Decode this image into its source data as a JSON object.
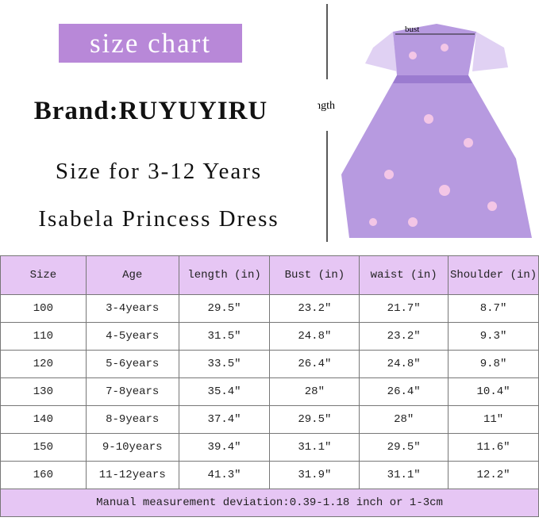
{
  "badge": "size chart",
  "brand": "Brand:RUYUYIRU",
  "subtitle": "Size for 3-12 Years",
  "product": "Isabela Princess Dress",
  "dress_labels": {
    "bust": "bust",
    "length": "length"
  },
  "colors": {
    "accent": "#b888d8",
    "header": "#e6c6f4"
  },
  "table": {
    "headers": [
      "Size",
      "Age",
      "length (in)",
      "Bust (in)",
      "waist (in)",
      "Shoulder (in)"
    ],
    "rows": [
      [
        "100",
        "3-4years",
        "29.5″",
        "23.2″",
        "21.7″",
        "8.7″"
      ],
      [
        "110",
        "4-5years",
        "31.5″",
        "24.8″",
        "23.2″",
        "9.3″"
      ],
      [
        "120",
        "5-6years",
        "33.5″",
        "26.4″",
        "24.8″",
        "9.8″"
      ],
      [
        "130",
        "7-8years",
        "35.4″",
        "28″",
        "26.4″",
        "10.4″"
      ],
      [
        "140",
        "8-9years",
        "37.4″",
        "29.5″",
        "28″",
        "11″"
      ],
      [
        "150",
        "9-10years",
        "39.4″",
        "31.1″",
        "29.5″",
        "11.6″"
      ],
      [
        "160",
        "11-12years",
        "41.3″",
        "31.9″",
        "31.1″",
        "12.2″"
      ]
    ],
    "footer": "Manual measurement deviation:0.39-1.18 inch or 1-3cm"
  }
}
